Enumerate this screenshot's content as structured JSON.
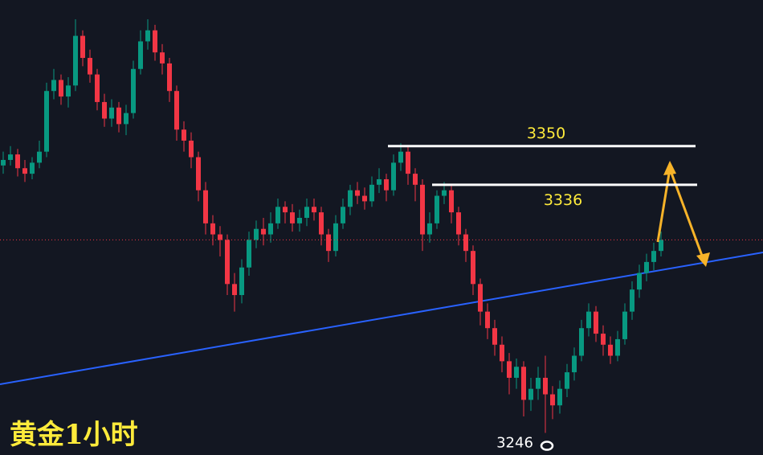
{
  "chart_data": {
    "type": "candlestick",
    "title": "黄金1小时",
    "ylim": [
      3238,
      3403
    ],
    "up_color": "#089981",
    "down_color": "#f23645",
    "levels": [
      3350,
      3336
    ],
    "low_marker": 3246,
    "open": [
      3343,
      3345,
      3347,
      3342,
      3340,
      3344,
      3348,
      3370,
      3374,
      3368,
      3372,
      3390,
      3382,
      3376,
      3366,
      3360,
      3364,
      3358,
      3362,
      3378,
      3388,
      3392,
      3384,
      3380,
      3370,
      3356,
      3352,
      3346,
      3334,
      3322,
      3318,
      3316,
      3300,
      3296,
      3306,
      3316,
      3320,
      3318,
      3322,
      3328,
      3326,
      3322,
      3324,
      3328,
      3326,
      3318,
      3312,
      3322,
      3328,
      3334,
      3332,
      3330,
      3336,
      3338,
      3334,
      3344,
      3348,
      3340,
      3336,
      3318,
      3322,
      3332,
      3334,
      3326,
      3318,
      3312,
      3300,
      3290,
      3284,
      3278,
      3272,
      3266,
      3270,
      3258,
      3262,
      3266,
      3260,
      3256,
      3262,
      3268,
      3274,
      3284,
      3290,
      3282,
      3278,
      3274,
      3280,
      3290,
      3298,
      3304,
      3308,
      3312
    ],
    "high": [
      3348,
      3350,
      3349,
      3345,
      3346,
      3352,
      3373,
      3378,
      3376,
      3375,
      3396,
      3392,
      3385,
      3378,
      3369,
      3367,
      3366,
      3365,
      3381,
      3392,
      3396,
      3394,
      3387,
      3382,
      3372,
      3359,
      3355,
      3348,
      3337,
      3325,
      3321,
      3318,
      3304,
      3309,
      3319,
      3323,
      3324,
      3326,
      3331,
      3330,
      3329,
      3327,
      3331,
      3331,
      3328,
      3320,
      3325,
      3331,
      3336,
      3337,
      3335,
      3339,
      3342,
      3340,
      3347,
      3351,
      3350,
      3342,
      3338,
      3326,
      3334,
      3337,
      3336,
      3328,
      3320,
      3314,
      3302,
      3293,
      3287,
      3281,
      3275,
      3273,
      3272,
      3266,
      3270,
      3274,
      3263,
      3265,
      3271,
      3277,
      3287,
      3293,
      3292,
      3285,
      3281,
      3283,
      3293,
      3301,
      3307,
      3311,
      3315,
      3319
    ],
    "low": [
      3340,
      3343,
      3339,
      3337,
      3338,
      3342,
      3346,
      3367,
      3365,
      3364,
      3370,
      3379,
      3373,
      3363,
      3357,
      3357,
      3355,
      3354,
      3360,
      3376,
      3385,
      3381,
      3376,
      3366,
      3352,
      3348,
      3342,
      3330,
      3318,
      3314,
      3310,
      3296,
      3290,
      3293,
      3303,
      3313,
      3314,
      3315,
      3320,
      3322,
      3319,
      3319,
      3321,
      3323,
      3314,
      3308,
      3310,
      3320,
      3325,
      3329,
      3327,
      3328,
      3333,
      3330,
      3332,
      3341,
      3336,
      3330,
      3312,
      3315,
      3320,
      3329,
      3322,
      3314,
      3308,
      3296,
      3285,
      3280,
      3274,
      3268,
      3260,
      3262,
      3252,
      3254,
      3258,
      3246,
      3251,
      3253,
      3259,
      3265,
      3272,
      3281,
      3279,
      3274,
      3271,
      3272,
      3278,
      3287,
      3295,
      3301,
      3305,
      3310
    ],
    "close": [
      3345,
      3347,
      3342,
      3340,
      3344,
      3348,
      3370,
      3374,
      3368,
      3372,
      3390,
      3382,
      3376,
      3366,
      3360,
      3364,
      3358,
      3362,
      3378,
      3388,
      3392,
      3384,
      3380,
      3370,
      3356,
      3352,
      3346,
      3334,
      3322,
      3318,
      3316,
      3300,
      3296,
      3306,
      3316,
      3320,
      3318,
      3322,
      3328,
      3326,
      3322,
      3324,
      3328,
      3326,
      3318,
      3312,
      3322,
      3328,
      3334,
      3332,
      3330,
      3336,
      3338,
      3334,
      3344,
      3348,
      3340,
      3336,
      3318,
      3322,
      3332,
      3334,
      3326,
      3318,
      3312,
      3300,
      3290,
      3284,
      3278,
      3272,
      3266,
      3270,
      3258,
      3262,
      3266,
      3260,
      3256,
      3262,
      3268,
      3274,
      3284,
      3290,
      3282,
      3278,
      3274,
      3280,
      3290,
      3298,
      3304,
      3308,
      3312,
      3316
    ]
  }
}
